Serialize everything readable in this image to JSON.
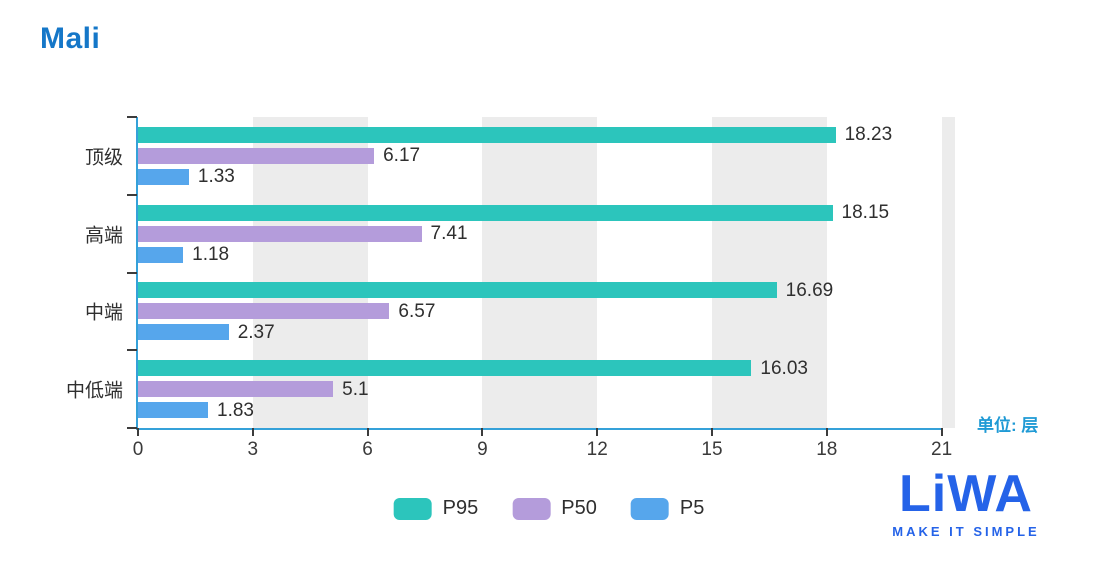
{
  "page": {
    "title": "Mali"
  },
  "unit_note": "单位: 层",
  "logo": {
    "name": "LiWA",
    "tagline": "MAKE IT SIMPLE"
  },
  "colors": {
    "title_blue": "#1577c8",
    "axis_line_blue": "#35a1d9",
    "tick_dark": "#3c3c3c",
    "split_band_gray": "#ececec",
    "label_dark": "#2f2f2f",
    "unit_note_blue": "#1f9ad5",
    "logo_blue": "#2563e8",
    "p95_teal": "#2cc5bc",
    "p50_purple": "#b49cdb",
    "p5_blue": "#56a6ec"
  },
  "chart_data": {
    "type": "bar",
    "orientation": "horizontal",
    "title": "Mali",
    "unit_label": "单位: 层",
    "categories": [
      "顶级",
      "高端",
      "中端",
      "中低端"
    ],
    "series": [
      {
        "name": "P95",
        "color": "#2cc5bc",
        "values": [
          18.23,
          18.15,
          16.69,
          16.03
        ]
      },
      {
        "name": "P50",
        "color": "#b49cdb",
        "values": [
          6.17,
          7.41,
          6.57,
          5.1
        ]
      },
      {
        "name": "P5",
        "color": "#56a6ec",
        "values": [
          1.33,
          1.18,
          2.37,
          1.83
        ]
      }
    ],
    "x_ticks": [
      0,
      3,
      6,
      9,
      12,
      15,
      18,
      21
    ],
    "xlim": [
      0,
      21.35
    ],
    "split_area_intervals": [
      [
        3,
        6
      ],
      [
        9,
        12
      ],
      [
        15,
        18
      ],
      [
        21,
        21.35
      ]
    ],
    "value_labels": true,
    "grid": "split-area",
    "legend_position": "bottom-center",
    "legend_entries": [
      "P95",
      "P50",
      "P5"
    ]
  }
}
